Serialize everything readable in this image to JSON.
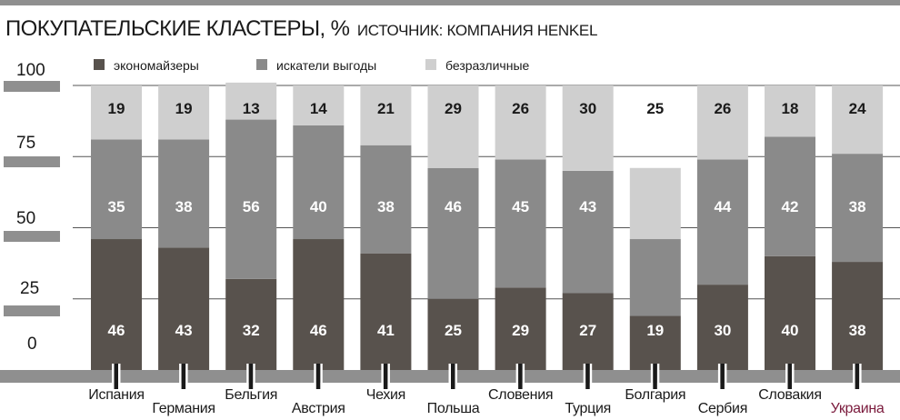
{
  "header": {
    "title": "ПОКУПАТЕЛЬСКИЕ КЛАСТЕРЫ, %",
    "source": "ИСТОЧНИК: КОМПАНИЯ HENKEL"
  },
  "colors": {
    "economizers": "#58524d",
    "value_seekers": "#8a8a8a",
    "indifferent": "#cfcfcf",
    "highlight_label": "#7a1a3c",
    "axis": "#8f8f8f"
  },
  "chart_data": {
    "type": "bar",
    "stacked": true,
    "yticks": [
      "100",
      "75",
      "50",
      "25",
      "0"
    ],
    "ylim": [
      0,
      100
    ],
    "legend_position": "top",
    "categories": [
      "Испания",
      "Германия",
      "Бельгия",
      "Австрия",
      "Чехия",
      "Польша",
      "Словения",
      "Турция",
      "Болгария",
      "Сербия",
      "Словакия",
      "Украина"
    ],
    "highlighted_category": "Украина",
    "series": [
      {
        "name": "экономайзеры",
        "values": [
          46,
          43,
          32,
          46,
          41,
          25,
          29,
          27,
          19,
          30,
          40,
          38
        ]
      },
      {
        "name": "искатели выгоды",
        "values": [
          35,
          38,
          56,
          40,
          38,
          46,
          45,
          43,
          27,
          44,
          42,
          38
        ]
      },
      {
        "name": "безразличные",
        "values": [
          19,
          19,
          13,
          14,
          21,
          29,
          26,
          30,
          25,
          26,
          18,
          24
        ]
      }
    ]
  }
}
